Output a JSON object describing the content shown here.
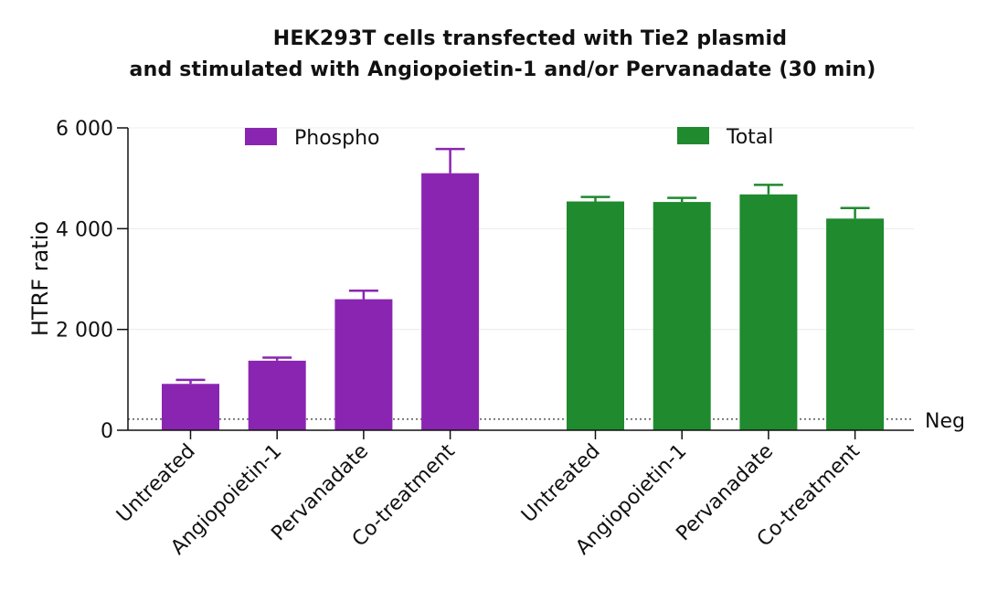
{
  "chart_data": {
    "type": "bar",
    "title_line1": "HEK293T cells transfected with Tie2 plasmid",
    "title_line2": "and stimulated with Angiopoietin-1 and/or Pervanadate (30 min)",
    "ylabel": "HTRF ratio",
    "ylim": [
      0,
      6000
    ],
    "yticks": [
      {
        "value": 0,
        "label": "0"
      },
      {
        "value": 2000,
        "label": "2 000"
      },
      {
        "value": 4000,
        "label": "4 000"
      },
      {
        "value": 6000,
        "label": "6 000"
      }
    ],
    "reference_line": {
      "label": "Neg",
      "value": 220
    },
    "grid": true,
    "series": [
      {
        "name": "Phospho",
        "color": "#8a25b1",
        "categories": [
          "Untreated",
          "Angiopoietin-1",
          "Pervanadate",
          "Co-treatment"
        ],
        "values": [
          920,
          1380,
          2600,
          5100
        ],
        "errors": [
          80,
          60,
          170,
          480
        ]
      },
      {
        "name": "Total",
        "color": "#1f8a2e",
        "categories": [
          "Untreated",
          "Angiopoietin-1",
          "Pervanadate",
          "Co-treatment"
        ],
        "values": [
          4540,
          4530,
          4680,
          4200
        ],
        "errors": [
          90,
          80,
          190,
          210
        ]
      }
    ]
  }
}
